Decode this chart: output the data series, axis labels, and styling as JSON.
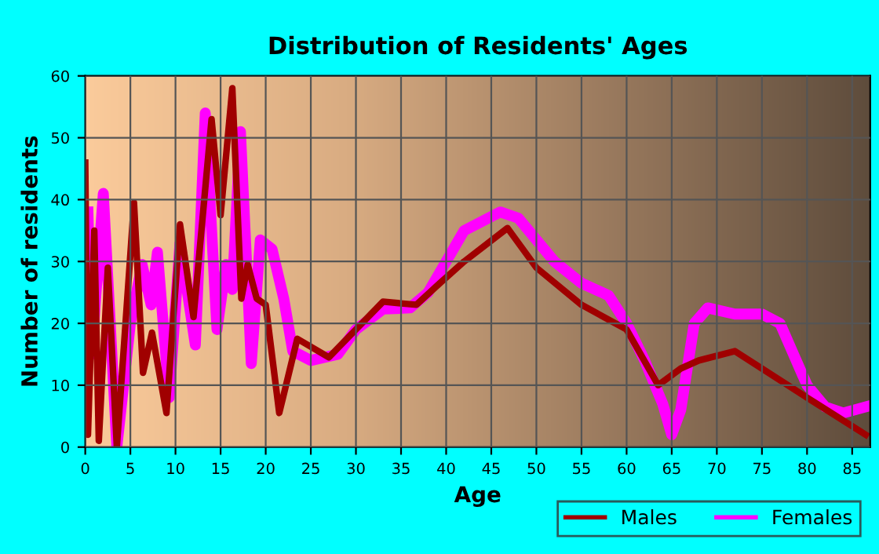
{
  "chart_data": {
    "type": "line",
    "title": "Distribution of Residents' Ages",
    "xlabel": "Age",
    "ylabel": "Number of residents",
    "xlim": [
      0,
      87
    ],
    "xticks": [
      0,
      5,
      10,
      15,
      20,
      25,
      30,
      35,
      40,
      45,
      50,
      55,
      60,
      65,
      70,
      75,
      80,
      85
    ],
    "ylim": [
      0,
      60
    ],
    "yticks": [
      0,
      10,
      20,
      30,
      40,
      50,
      60
    ],
    "grid": true,
    "legend": "bottom right",
    "line_style": "solid",
    "series": [
      {
        "name": "Males",
        "color": "#a00000",
        "x": [
          0,
          0.3,
          1,
          1.5,
          2.5,
          3.5,
          5.4,
          6.4,
          7.4,
          9,
          10.5,
          12,
          14,
          15,
          16.3,
          17.3,
          18,
          19,
          20,
          21.5,
          23.5,
          27,
          30,
          33,
          36.7,
          39.3,
          42,
          46.8,
          50,
          55,
          60,
          63.5,
          66,
          68,
          72,
          80,
          86.5
        ],
        "values": [
          46,
          2,
          35,
          1,
          29,
          0,
          39.5,
          12,
          18.5,
          5.5,
          36,
          21,
          53,
          37.5,
          58,
          24,
          29.5,
          24,
          23,
          5.5,
          17.5,
          14.5,
          19,
          23.5,
          23,
          26.5,
          30,
          35.4,
          29,
          23,
          19,
          10,
          12.7,
          14,
          15.5,
          8,
          2
        ]
      },
      {
        "name": "Females",
        "color": "#ff00ff",
        "x": [
          0.3,
          0.7,
          2,
          3.5,
          5,
          6.3,
          7.3,
          8,
          9.3,
          10.5,
          12.2,
          13.3,
          14.6,
          15.6,
          16.3,
          17.2,
          18.4,
          19.4,
          20.7,
          22,
          23,
          25,
          28,
          30,
          33,
          36,
          38,
          40,
          42,
          46,
          48,
          52,
          55,
          58,
          60,
          62,
          64,
          65,
          66,
          67.5,
          69,
          72,
          75,
          77,
          80,
          82,
          84,
          86.5
        ],
        "values": [
          38,
          15,
          41,
          0,
          20,
          29.5,
          23,
          31.5,
          8,
          33,
          16.5,
          54,
          19,
          29.5,
          25.5,
          51,
          13.5,
          33.5,
          32,
          24,
          15.5,
          14,
          15,
          19,
          22.3,
          22.5,
          25,
          30,
          35,
          38,
          37,
          30,
          26.5,
          24.5,
          20,
          14,
          7,
          2,
          6,
          20,
          22.5,
          21.5,
          21.5,
          20,
          10,
          6.5,
          5.5,
          6.5
        ]
      }
    ]
  }
}
